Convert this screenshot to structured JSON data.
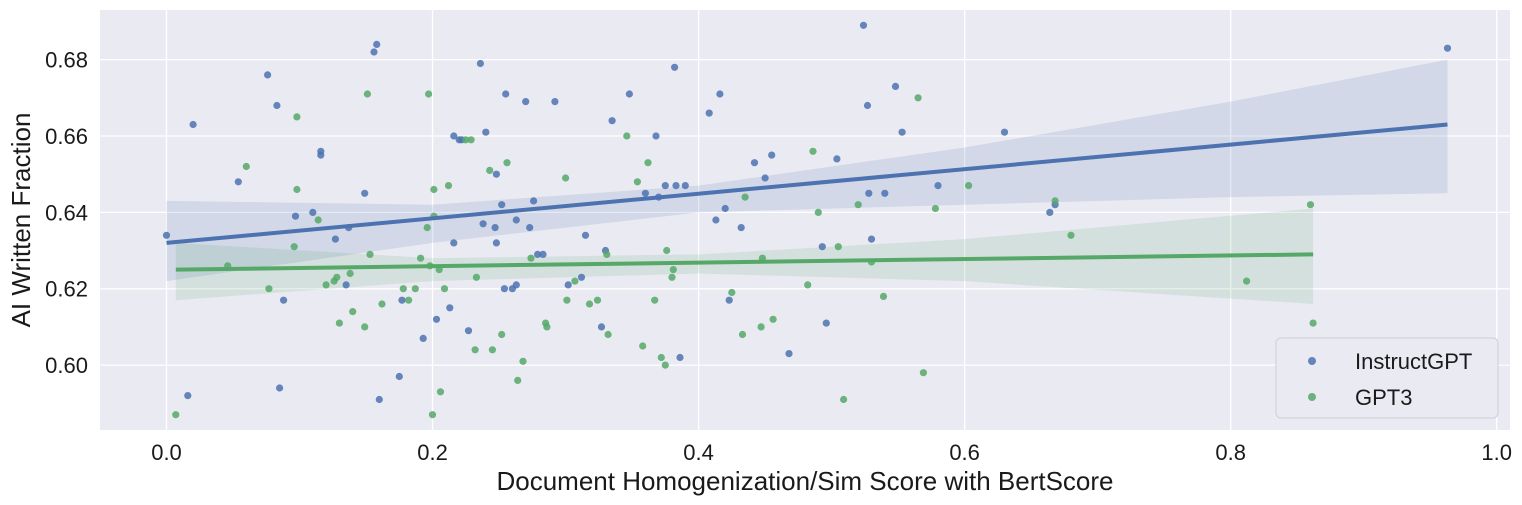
{
  "chart_data": {
    "type": "scatter",
    "title": "",
    "xlabel": "Document Homogenization/Sim Score with BertScore",
    "ylabel": "AI Written Fraction",
    "xlim": [
      -0.05,
      1.01
    ],
    "ylim": [
      0.583,
      0.693
    ],
    "x_ticks": [
      0.0,
      0.2,
      0.4,
      0.6,
      0.8,
      1.0
    ],
    "x_tick_labels": [
      "0.0",
      "0.2",
      "0.4",
      "0.6",
      "0.8",
      "1.0"
    ],
    "y_ticks": [
      0.6,
      0.62,
      0.64,
      0.66,
      0.68
    ],
    "y_tick_labels": [
      "0.60",
      "0.62",
      "0.64",
      "0.66",
      "0.68"
    ],
    "grid": true,
    "legend_position": "bottom-right",
    "background": "#eaeaf2",
    "series": [
      {
        "name": "InstructGPT",
        "color": "#4c72b0",
        "points": [
          [
            0.0,
            0.634
          ],
          [
            0.016,
            0.592
          ],
          [
            0.02,
            0.663
          ],
          [
            0.054,
            0.648
          ],
          [
            0.076,
            0.676
          ],
          [
            0.083,
            0.668
          ],
          [
            0.085,
            0.594
          ],
          [
            0.088,
            0.617
          ],
          [
            0.097,
            0.639
          ],
          [
            0.11,
            0.64
          ],
          [
            0.116,
            0.656
          ],
          [
            0.116,
            0.655
          ],
          [
            0.127,
            0.633
          ],
          [
            0.135,
            0.621
          ],
          [
            0.137,
            0.636
          ],
          [
            0.149,
            0.645
          ],
          [
            0.156,
            0.682
          ],
          [
            0.158,
            0.684
          ],
          [
            0.16,
            0.591
          ],
          [
            0.175,
            0.597
          ],
          [
            0.177,
            0.617
          ],
          [
            0.193,
            0.607
          ],
          [
            0.203,
            0.612
          ],
          [
            0.213,
            0.615
          ],
          [
            0.216,
            0.632
          ],
          [
            0.216,
            0.66
          ],
          [
            0.22,
            0.659
          ],
          [
            0.222,
            0.659
          ],
          [
            0.227,
            0.609
          ],
          [
            0.236,
            0.679
          ],
          [
            0.238,
            0.637
          ],
          [
            0.24,
            0.661
          ],
          [
            0.247,
            0.636
          ],
          [
            0.248,
            0.65
          ],
          [
            0.248,
            0.632
          ],
          [
            0.252,
            0.642
          ],
          [
            0.254,
            0.62
          ],
          [
            0.255,
            0.671
          ],
          [
            0.26,
            0.62
          ],
          [
            0.263,
            0.621
          ],
          [
            0.263,
            0.638
          ],
          [
            0.27,
            0.669
          ],
          [
            0.273,
            0.636
          ],
          [
            0.276,
            0.643
          ],
          [
            0.279,
            0.629
          ],
          [
            0.283,
            0.629
          ],
          [
            0.292,
            0.669
          ],
          [
            0.302,
            0.621
          ],
          [
            0.312,
            0.623
          ],
          [
            0.315,
            0.634
          ],
          [
            0.327,
            0.61
          ],
          [
            0.33,
            0.63
          ],
          [
            0.335,
            0.664
          ],
          [
            0.348,
            0.671
          ],
          [
            0.36,
            0.645
          ],
          [
            0.368,
            0.66
          ],
          [
            0.37,
            0.644
          ],
          [
            0.375,
            0.647
          ],
          [
            0.382,
            0.678
          ],
          [
            0.383,
            0.647
          ],
          [
            0.386,
            0.602
          ],
          [
            0.39,
            0.647
          ],
          [
            0.408,
            0.666
          ],
          [
            0.413,
            0.638
          ],
          [
            0.416,
            0.671
          ],
          [
            0.42,
            0.641
          ],
          [
            0.423,
            0.617
          ],
          [
            0.432,
            0.636
          ],
          [
            0.442,
            0.653
          ],
          [
            0.45,
            0.649
          ],
          [
            0.455,
            0.655
          ],
          [
            0.468,
            0.603
          ],
          [
            0.493,
            0.631
          ],
          [
            0.496,
            0.611
          ],
          [
            0.504,
            0.654
          ],
          [
            0.524,
            0.689
          ],
          [
            0.527,
            0.668
          ],
          [
            0.528,
            0.645
          ],
          [
            0.53,
            0.633
          ],
          [
            0.54,
            0.645
          ],
          [
            0.548,
            0.673
          ],
          [
            0.553,
            0.661
          ],
          [
            0.58,
            0.647
          ],
          [
            0.63,
            0.661
          ],
          [
            0.664,
            0.64
          ],
          [
            0.668,
            0.642
          ],
          [
            0.963,
            0.683
          ]
        ]
      },
      {
        "name": "GPT3",
        "color": "#55a868",
        "points": [
          [
            0.007,
            0.587
          ],
          [
            0.046,
            0.626
          ],
          [
            0.06,
            0.652
          ],
          [
            0.077,
            0.62
          ],
          [
            0.096,
            0.631
          ],
          [
            0.098,
            0.665
          ],
          [
            0.098,
            0.646
          ],
          [
            0.114,
            0.638
          ],
          [
            0.12,
            0.621
          ],
          [
            0.126,
            0.622
          ],
          [
            0.128,
            0.623
          ],
          [
            0.13,
            0.611
          ],
          [
            0.138,
            0.624
          ],
          [
            0.14,
            0.614
          ],
          [
            0.149,
            0.61
          ],
          [
            0.151,
            0.671
          ],
          [
            0.153,
            0.629
          ],
          [
            0.162,
            0.616
          ],
          [
            0.178,
            0.62
          ],
          [
            0.182,
            0.617
          ],
          [
            0.187,
            0.62
          ],
          [
            0.191,
            0.628
          ],
          [
            0.196,
            0.636
          ],
          [
            0.197,
            0.671
          ],
          [
            0.198,
            0.626
          ],
          [
            0.2,
            0.587
          ],
          [
            0.201,
            0.646
          ],
          [
            0.201,
            0.639
          ],
          [
            0.205,
            0.625
          ],
          [
            0.206,
            0.593
          ],
          [
            0.209,
            0.62
          ],
          [
            0.212,
            0.647
          ],
          [
            0.225,
            0.659
          ],
          [
            0.229,
            0.659
          ],
          [
            0.232,
            0.604
          ],
          [
            0.233,
            0.623
          ],
          [
            0.243,
            0.651
          ],
          [
            0.245,
            0.604
          ],
          [
            0.252,
            0.608
          ],
          [
            0.256,
            0.653
          ],
          [
            0.264,
            0.596
          ],
          [
            0.268,
            0.601
          ],
          [
            0.274,
            0.628
          ],
          [
            0.285,
            0.611
          ],
          [
            0.286,
            0.61
          ],
          [
            0.3,
            0.649
          ],
          [
            0.301,
            0.617
          ],
          [
            0.307,
            0.622
          ],
          [
            0.318,
            0.616
          ],
          [
            0.324,
            0.617
          ],
          [
            0.331,
            0.629
          ],
          [
            0.332,
            0.608
          ],
          [
            0.346,
            0.66
          ],
          [
            0.354,
            0.648
          ],
          [
            0.358,
            0.605
          ],
          [
            0.362,
            0.653
          ],
          [
            0.367,
            0.617
          ],
          [
            0.372,
            0.602
          ],
          [
            0.375,
            0.6
          ],
          [
            0.376,
            0.63
          ],
          [
            0.38,
            0.623
          ],
          [
            0.381,
            0.625
          ],
          [
            0.425,
            0.619
          ],
          [
            0.433,
            0.608
          ],
          [
            0.435,
            0.644
          ],
          [
            0.447,
            0.61
          ],
          [
            0.448,
            0.628
          ],
          [
            0.456,
            0.612
          ],
          [
            0.482,
            0.621
          ],
          [
            0.486,
            0.656
          ],
          [
            0.49,
            0.64
          ],
          [
            0.505,
            0.631
          ],
          [
            0.509,
            0.591
          ],
          [
            0.52,
            0.642
          ],
          [
            0.53,
            0.627
          ],
          [
            0.539,
            0.618
          ],
          [
            0.565,
            0.67
          ],
          [
            0.569,
            0.598
          ],
          [
            0.578,
            0.641
          ],
          [
            0.603,
            0.647
          ],
          [
            0.668,
            0.643
          ],
          [
            0.68,
            0.634
          ],
          [
            0.812,
            0.622
          ],
          [
            0.86,
            0.642
          ],
          [
            0.862,
            0.611
          ]
        ]
      }
    ],
    "regression": [
      {
        "name": "InstructGPT",
        "x": [
          0.0,
          0.963
        ],
        "y": [
          0.632,
          0.663
        ],
        "ci_color": "#4c72b0",
        "band": {
          "x": [
            0.0,
            0.2,
            0.4,
            0.6,
            0.8,
            0.963
          ],
          "upper": [
            0.643,
            0.642,
            0.647,
            0.657,
            0.669,
            0.68
          ],
          "lower": [
            0.622,
            0.632,
            0.64,
            0.642,
            0.644,
            0.645
          ]
        }
      },
      {
        "name": "GPT3",
        "x": [
          0.007,
          0.862
        ],
        "y": [
          0.625,
          0.629
        ],
        "ci_color": "#55a868",
        "band": {
          "x": [
            0.007,
            0.2,
            0.4,
            0.6,
            0.862
          ],
          "upper": [
            0.632,
            0.628,
            0.629,
            0.633,
            0.641
          ],
          "lower": [
            0.617,
            0.622,
            0.624,
            0.622,
            0.616
          ]
        }
      }
    ]
  }
}
